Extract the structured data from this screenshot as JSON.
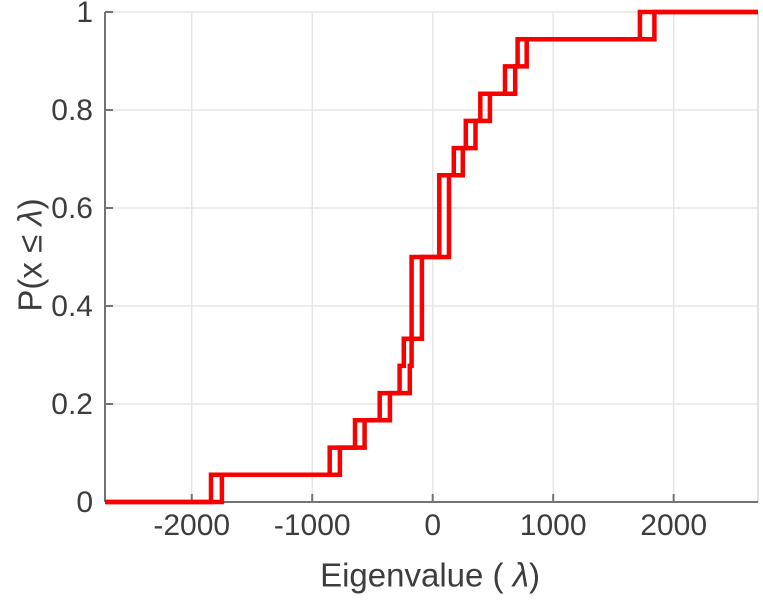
{
  "chart_data": {
    "type": "line",
    "subtype": "ecdf-stairs",
    "title": "",
    "xlabel": "Eigenvalue ( λ)",
    "ylabel": "P(x ≤ λ)",
    "xlim": [
      -2720,
      2700
    ],
    "ylim": [
      0,
      1
    ],
    "x_ticks": [
      -2000,
      -1000,
      0,
      1000,
      2000
    ],
    "x_tick_labels": [
      "-2000",
      "-1000",
      "0",
      "1000",
      "2000"
    ],
    "y_ticks": [
      0,
      0.2,
      0.4,
      0.6,
      0.8,
      1
    ],
    "y_tick_labels": [
      "0",
      "0.2",
      "0.4",
      "0.6",
      "0.8",
      "1"
    ],
    "grid": true,
    "legend_position": "none",
    "line_color": "#f80000",
    "line_width": 4.5,
    "grid_color": "#e6e6e6",
    "spine_color": "#737373",
    "step_levels": "k/18 for k = 1..18 per series",
    "series": [
      {
        "name": "ecdf-curve-1",
        "eigenvalues": [
          -1840,
          -855,
          -645,
          -440,
          -275,
          -240,
          -175,
          -175,
          -175,
          55,
          55,
          55,
          175,
          275,
          395,
          600,
          705,
          1720
        ]
      },
      {
        "name": "ecdf-curve-2",
        "eigenvalues": [
          -1750,
          -770,
          -565,
          -355,
          -190,
          -175,
          -90,
          -90,
          -90,
          135,
          135,
          135,
          250,
          355,
          475,
          685,
          780,
          1840
        ]
      }
    ]
  }
}
